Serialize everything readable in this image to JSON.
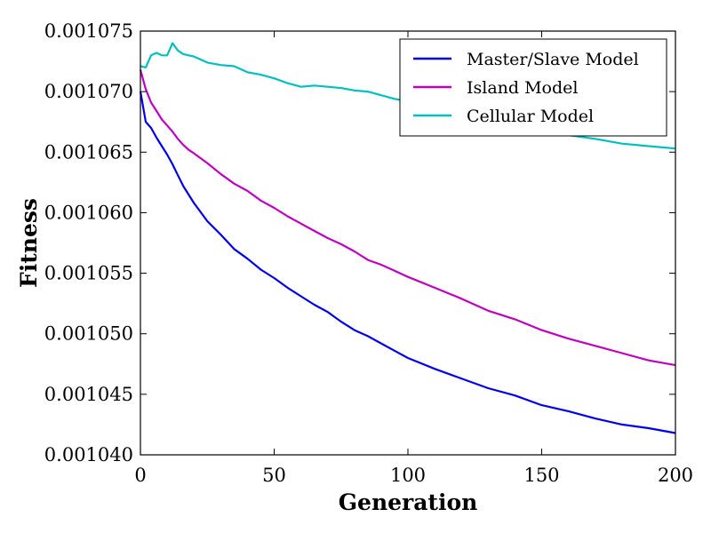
{
  "chart_data": {
    "type": "line",
    "title": "",
    "xlabel": "Generation",
    "ylabel": "Fitness",
    "xlim": [
      0,
      200
    ],
    "ylim": [
      0.00104,
      0.001075
    ],
    "xticks": [
      "0",
      "50",
      "100",
      "150",
      "200"
    ],
    "yticks": [
      "0.001040",
      "0.001045",
      "0.001050",
      "0.001055",
      "0.001060",
      "0.001065",
      "0.001070",
      "0.001075"
    ],
    "legend_position": "top-right",
    "grid": false,
    "x": [
      0,
      2,
      4,
      6,
      8,
      10,
      12,
      14,
      16,
      18,
      20,
      25,
      30,
      35,
      40,
      45,
      50,
      55,
      60,
      65,
      70,
      75,
      80,
      85,
      90,
      95,
      100,
      110,
      120,
      130,
      140,
      150,
      160,
      170,
      180,
      190,
      200
    ],
    "series": [
      {
        "name": "Master/Slave Model",
        "color": "#0000ee",
        "values": [
          0.00107,
          0.0010675,
          0.001067,
          0.0010662,
          0.0010655,
          0.0010648,
          0.001064,
          0.0010631,
          0.0010622,
          0.0010615,
          0.0010608,
          0.0010593,
          0.0010582,
          0.001057,
          0.0010562,
          0.0010553,
          0.0010546,
          0.0010538,
          0.0010531,
          0.0010524,
          0.0010518,
          0.001051,
          0.0010503,
          0.0010498,
          0.0010492,
          0.0010486,
          0.001048,
          0.0010471,
          0.0010463,
          0.0010455,
          0.0010449,
          0.0010441,
          0.0010436,
          0.001043,
          0.0010425,
          0.0010422,
          0.0010418
        ]
      },
      {
        "name": "Island Model",
        "color": "#c000c0",
        "values": [
          0.0010718,
          0.0010702,
          0.0010691,
          0.0010684,
          0.0010677,
          0.0010672,
          0.0010667,
          0.0010661,
          0.0010656,
          0.0010652,
          0.0010649,
          0.0010641,
          0.0010632,
          0.0010624,
          0.0010618,
          0.001061,
          0.0010604,
          0.0010597,
          0.0010591,
          0.0010585,
          0.0010579,
          0.0010574,
          0.0010568,
          0.0010561,
          0.0010557,
          0.0010552,
          0.0010547,
          0.0010538,
          0.0010529,
          0.0010519,
          0.0010512,
          0.0010503,
          0.0010496,
          0.001049,
          0.0010484,
          0.0010478,
          0.0010474
        ]
      },
      {
        "name": "Cellular Model",
        "color": "#00bfbf",
        "values": [
          0.0010721,
          0.001072,
          0.001073,
          0.0010732,
          0.001073,
          0.001073,
          0.001074,
          0.0010734,
          0.0010731,
          0.001073,
          0.0010729,
          0.0010724,
          0.0010722,
          0.0010721,
          0.0010716,
          0.0010714,
          0.0010711,
          0.0010707,
          0.0010704,
          0.0010705,
          0.0010704,
          0.0010703,
          0.0010701,
          0.00107,
          0.0010697,
          0.0010694,
          0.0010692,
          0.0010686,
          0.001068,
          0.0010676,
          0.001067,
          0.0010667,
          0.0010664,
          0.0010661,
          0.0010657,
          0.0010655,
          0.0010653
        ]
      }
    ]
  }
}
